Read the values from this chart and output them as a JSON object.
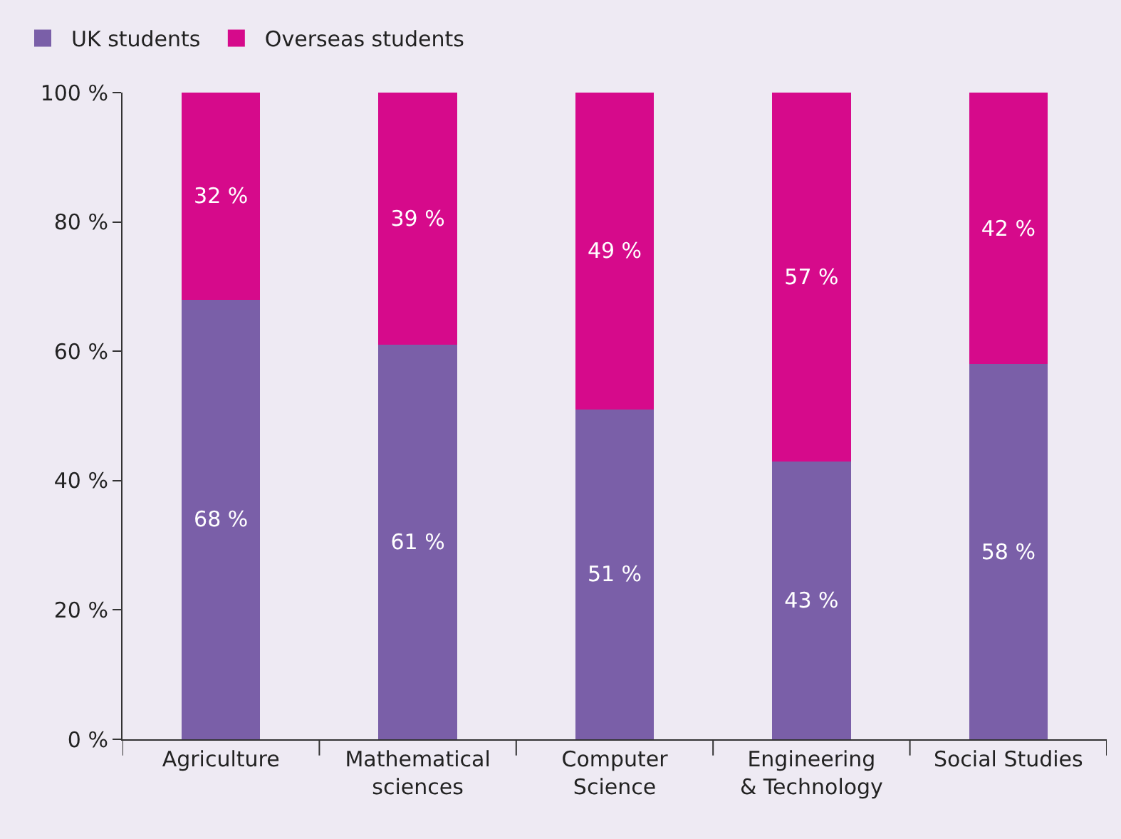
{
  "chart_data": {
    "type": "bar",
    "stacked": true,
    "categories": [
      "Agriculture",
      "Mathematical\nsciences",
      "Computer\nScience",
      "Engineering\n& Technology",
      "Social Studies"
    ],
    "series": [
      {
        "name": "UK students",
        "color": "#7a5fa8",
        "values": [
          68,
          61,
          51,
          43,
          58
        ],
        "value_labels": [
          "68 %",
          "61 %",
          "51 %",
          "43 %",
          "58 %"
        ]
      },
      {
        "name": "Overseas students",
        "color": "#d60a8b",
        "values": [
          32,
          39,
          49,
          57,
          42
        ],
        "value_labels": [
          "32 %",
          "39 %",
          "49 %",
          "57 %",
          "42 %"
        ]
      }
    ],
    "ylim": [
      0,
      100
    ],
    "yticks": [
      {
        "value": 0,
        "label": "0 %"
      },
      {
        "value": 20,
        "label": "20 %"
      },
      {
        "value": 40,
        "label": "40 %"
      },
      {
        "value": 60,
        "label": "60 %"
      },
      {
        "value": 80,
        "label": "80 %"
      },
      {
        "value": 100,
        "label": "100 %"
      }
    ],
    "grid": false,
    "legend": "top left"
  }
}
